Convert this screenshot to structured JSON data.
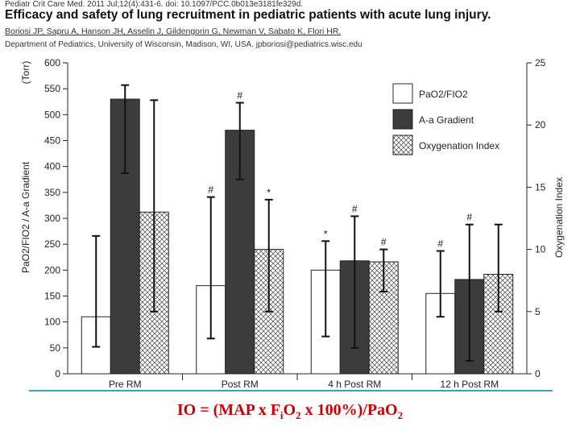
{
  "citation": {
    "journal_line": "Pediatr Crit Care Med. 2011 Jul;12(4):431-6. doi: 10.1097/PCC.0b013e3181fe329d.",
    "title": "Efficacy and safety of lung recruitment in pediatric patients with acute lung injury.",
    "authors": "Boriosi JP, Sapru A, Hanson JH, Asselin J, Gildengorin G, Newman V, Sabato K, Flori HR.",
    "department": "Department of Pediatrics, University of Wisconsin, Madison, WI, USA. jpboriosi@pediatrics.wisc.edu"
  },
  "chart_data": {
    "type": "bar",
    "categories": [
      "Pre RM",
      "Post RM",
      "4 h Post RM",
      "12 h Post RM"
    ],
    "series": [
      {
        "name": "PaO2/FIO2",
        "axis": "left",
        "fill": "white",
        "values": [
          110,
          170,
          200,
          155
        ],
        "err_low": [
          52,
          68,
          72,
          110
        ],
        "err_high": [
          266,
          341,
          256,
          237
        ],
        "markers": [
          "",
          "#",
          "*",
          "#"
        ]
      },
      {
        "name": "A-a Gradient",
        "axis": "left",
        "fill": "dark",
        "values": [
          530,
          470,
          218,
          182
        ],
        "err_low": [
          387,
          375,
          50,
          25
        ],
        "err_high": [
          557,
          523,
          304,
          288
        ],
        "markers": [
          "",
          "#",
          "#",
          "#"
        ]
      },
      {
        "name": "Oxygenation Index",
        "axis": "right",
        "fill": "hatch",
        "values": [
          13,
          10,
          9,
          8
        ],
        "err_low": [
          5,
          5,
          6.6,
          5
        ],
        "err_high": [
          22,
          14,
          10,
          12
        ],
        "markers": [
          "",
          "*",
          "#",
          ""
        ]
      }
    ],
    "left_axis": {
      "label": "PaO2/FIO2 / A-a Gradient",
      "unit": "(Torr)",
      "ylim": [
        0,
        600
      ],
      "ticks": [
        0,
        50,
        100,
        150,
        200,
        250,
        300,
        350,
        400,
        450,
        500,
        550,
        600
      ]
    },
    "right_axis": {
      "label": "Oxygenation Index",
      "ylim": [
        0,
        25
      ],
      "ticks": [
        0,
        5,
        10,
        15,
        20,
        25
      ]
    },
    "legend": {
      "position": "top-right",
      "entries": [
        "PaO2/FIO2",
        "A-a Gradient",
        "Oxygenation Index"
      ]
    },
    "colors": {
      "dark": "#3c3c3c",
      "light": "#ffffff",
      "axis": "#222222"
    }
  },
  "formula": {
    "lhs": "IO = (MAP x F",
    "fi_sub": "i",
    "o2": "O",
    "two": "2",
    "rest": " x 100%)/PaO",
    "two_b": "2"
  }
}
